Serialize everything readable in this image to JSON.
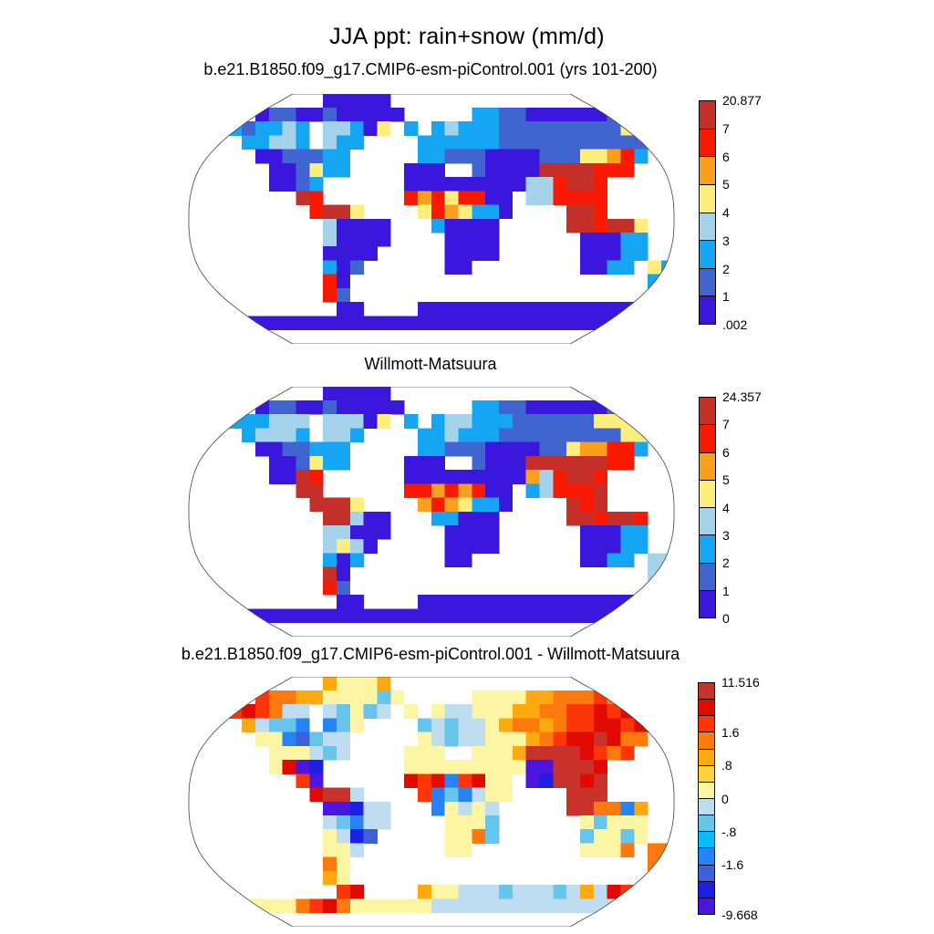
{
  "figure": {
    "title": "JJA ppt: rain+snow (mm/d)"
  },
  "chart_data": {
    "type": "heatmap",
    "projection": "robinson",
    "season": "JJA",
    "variable": "precipitation rain+snow",
    "units": "mm/d",
    "grid_shape": {
      "cols": 36,
      "rows": 18,
      "cell_deg": 10
    },
    "legend_position": "right",
    "palettes": {
      "seq": {
        "order": "12345678",
        "colors": {
          "1": "#c43029",
          "2": "#f91800",
          "3": "#fba01c",
          "4": "#fdee7e",
          "5": "#a6d3ec",
          "6": "#16a5f3",
          "7": "#4064d0",
          "8": "#3b17dd"
        }
      },
      "div": {
        "order": "abcdefghijklmn",
        "colors": {
          "a": "#c8322b",
          "b": "#e00a00",
          "c": "#fc3608",
          "d": "#fc7a0d",
          "e": "#fda90f",
          "f": "#fdd23a",
          "g": "#fcf6a4",
          "h": "#bfddf1",
          "i": "#67c5ec",
          "j": "#09bbf7",
          "k": "#2583f5",
          "l": "#3d61da",
          "m": "#1d1fe3",
          "n": "#4c16df"
        }
      }
    },
    "panels": [
      {
        "title": "b.e21.B1850.f09_g17.CMIP6-esm-piControl.001 (yrs 101-200)",
        "palette": "seq",
        "colorbar_min": ".002",
        "colorbar_max": "20.877",
        "levels": [
          0.002,
          1,
          2,
          3,
          4,
          5,
          6,
          7,
          20.877
        ],
        "colorbar_labels": [
          {
            "t": "20.877",
            "f": 0
          },
          {
            "t": "7",
            "f": 0.125
          },
          {
            "t": "6",
            "f": 0.25
          },
          {
            "t": "5",
            "f": 0.375
          },
          {
            "t": "4",
            "f": 0.5
          },
          {
            "t": "3",
            "f": 0.625
          },
          {
            "t": "2",
            "f": 0.75
          },
          {
            "t": "1",
            "f": 0.875
          },
          {
            "t": ".002",
            "f": 1
          }
        ],
        "grid": [
          "..........88888.....................",
          ".....87788788888.....667788888877766",
          ".66676656.55684.6.656667777777774346",
          "....66556.566....6666667777777777766",
          ".....8877766.....66777888877744326..",
          "......887466....888..788881111222...",
          "......8876......888888888552112.....",
          "........12......23242288.552222.....",
          ".........2114....4234668....112.....",
          "..........58888...68888.....112114..",
          "..........58888....8888......88866..",
          "..........8888.....8888......88866..",
          "..........687......88........8866.46",
          "..........28......................6.",
          "..........27........................",
          "...........88....8888888888888888888",
          "888888888888888888888888888888888888",
          "...................................."
        ]
      },
      {
        "title": "Willmott-Matsuura",
        "palette": "seq",
        "colorbar_min": "0",
        "colorbar_max": "24.357",
        "levels": [
          0,
          1,
          2,
          3,
          4,
          5,
          6,
          7,
          24.357
        ],
        "colorbar_labels": [
          {
            "t": "24.357",
            "f": 0
          },
          {
            "t": "7",
            "f": 0.125
          },
          {
            "t": "6",
            "f": 0.25
          },
          {
            "t": "5",
            "f": 0.375
          },
          {
            "t": "4",
            "f": 0.5
          },
          {
            "t": "3",
            "f": 0.625
          },
          {
            "t": "2",
            "f": 0.75
          },
          {
            "t": "1",
            "f": 0.875
          },
          {
            "t": "0",
            "f": 1
          }
        ],
        "grid": [
          "..........88888.....................",
          ".....87788788888.....667788888877766",
          ".66666555.55584.6.655666777777444343",
          "....65556.556....6656667777777774436",
          ".....8877666.....66777888877433226..",
          "......887466....888..788811111122...",
          "......8812......888888888352112.....",
          "........11......22323288.652221.....",
          ".........1114....3234668....121.....",
          "..........11588...66888.....112112..",
          "..........55888....8888......88866..",
          "..........5458.....8888......88866..",
          "..........686......88........8866.55",
          "..........18......................5.",
          "..........27........................",
          "...........88....8888888888888888888",
          "888888888888888888888888888888888888",
          "...................................."
        ]
      },
      {
        "title": "b.e21.B1850.f09_g17.CMIP6-esm-piControl.001 - Willmott-Matsuura",
        "palette": "div",
        "colorbar_min": "-9.668",
        "colorbar_max": "11.516",
        "levels": [
          -9.668,
          -2.4,
          -2,
          -1.6,
          -1.2,
          -0.8,
          -0.4,
          0,
          0.4,
          0.8,
          1.2,
          1.6,
          2,
          2.4,
          11.516
        ],
        "colorbar_labels": [
          {
            "t": "11.516",
            "f": 0
          },
          {
            "t": "1.6",
            "f": 0.2143
          },
          {
            "t": ".8",
            "f": 0.3571
          },
          {
            "t": "0",
            "f": 0.5
          },
          {
            "t": "-.8",
            "f": 0.6429
          },
          {
            "t": "-1.6",
            "f": 0.7857
          },
          {
            "t": "-9.668",
            "f": 1
          }
        ],
        "grid": [
          "..........eggge.....................",
          ".....cddeeggggig.....ggggeedddcdcdde",
          ".dccbcdhh.higih.g.ghhgggeeddccbcbcbc",
          "....ehiik.kig....ihihhgeddedccbbcbbd",
          ".....ggklihh.....ghihhgggedcbbabdd..",
          "......ggghih....ggg..gggeaaaabcdc...",
          "......gbnm......gggggggggnnaaab.....",
          "........cn......bcbkcbgg.nmaaba.....",
          ".........baah....ckikhgg....aaa.....",
          "..........nnmhh...kghgh.....aaddke..",
          "..........hikhh....gggi......giggg..",
          "..........ghml.....ggdi......iggig..",
          "..........ggh......gg........gggd.dd",
          "..........dg......................d.",
          "..........eg........................",
          "...........cb....egghhhihhhihehbchhh",
          "ggggggggdcbdgggggghhhhhhhhhhhhhhhhhh",
          "...................................."
        ]
      }
    ]
  }
}
